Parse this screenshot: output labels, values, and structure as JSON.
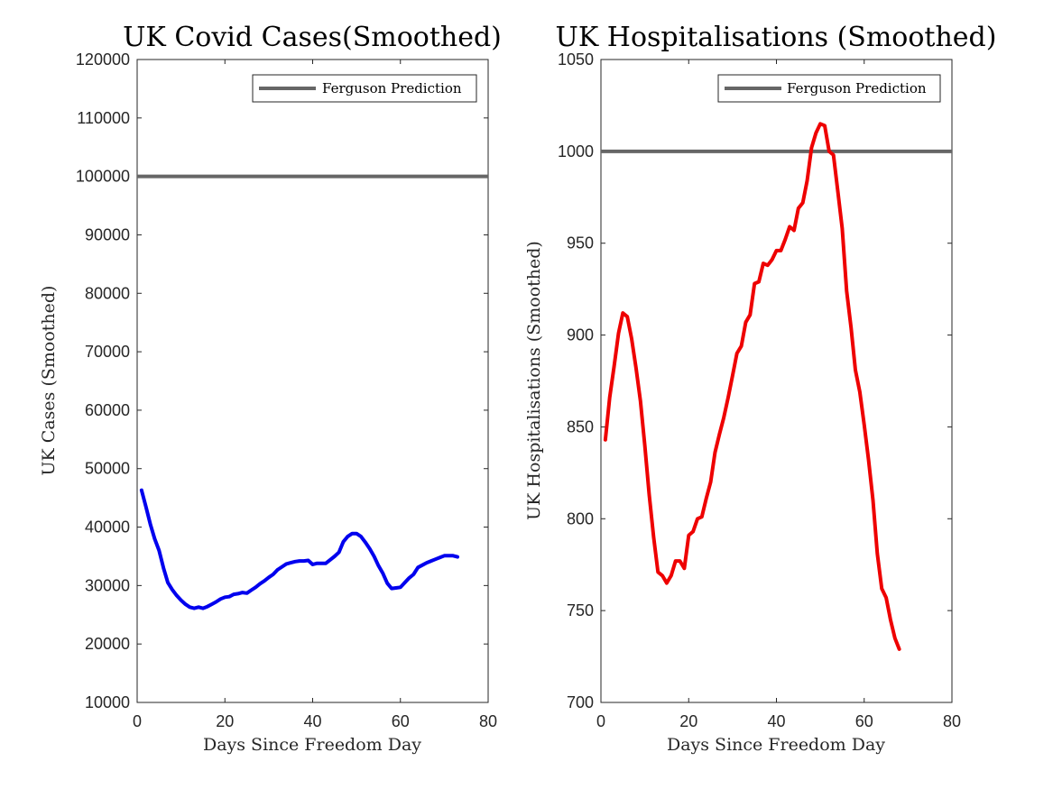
{
  "chart_data": [
    {
      "type": "line",
      "title": "UK Covid Cases(Smoothed)",
      "xlabel": "Days Since Freedom Day",
      "ylabel": "UK Cases (Smoothed)",
      "xlim": [
        0,
        80
      ],
      "ylim": [
        10000,
        120000
      ],
      "xticks": [
        0,
        20,
        40,
        60,
        80
      ],
      "yticks": [
        10000,
        20000,
        30000,
        40000,
        50000,
        60000,
        70000,
        80000,
        90000,
        100000,
        110000,
        120000
      ],
      "grid": false,
      "legend_position": "top-right",
      "reference_line": {
        "label": "Ferguson Prediction",
        "y": 100000,
        "color": "#666666"
      },
      "series": [
        {
          "color": "#0000ee",
          "x": [
            1,
            2,
            3,
            4,
            5,
            6,
            7,
            8,
            9,
            10,
            11,
            12,
            13,
            14,
            15,
            16,
            17,
            18,
            19,
            20,
            21,
            22,
            23,
            24,
            25,
            26,
            27,
            28,
            29,
            30,
            31,
            32,
            33,
            34,
            35,
            36,
            37,
            38,
            39,
            40,
            41,
            42,
            43,
            44,
            45,
            46,
            47,
            48,
            49,
            50,
            51,
            52,
            53,
            54,
            55,
            56,
            57,
            58,
            59,
            60,
            61,
            62,
            63,
            64,
            65,
            66,
            67,
            68,
            69,
            70,
            71,
            72,
            73
          ],
          "y": [
            46300,
            43500,
            40500,
            38000,
            36000,
            33000,
            30500,
            29300,
            28300,
            27500,
            26800,
            26300,
            26100,
            26300,
            26100,
            26400,
            26800,
            27200,
            27700,
            28000,
            28100,
            28500,
            28600,
            28800,
            28700,
            29200,
            29700,
            30300,
            30800,
            31400,
            31900,
            32700,
            33200,
            33700,
            33900,
            34100,
            34200,
            34200,
            34300,
            33600,
            33800,
            33800,
            33800,
            34400,
            35000,
            35700,
            37500,
            38400,
            38900,
            38900,
            38400,
            37400,
            36300,
            35000,
            33400,
            32100,
            30400,
            29500,
            29600,
            29700,
            30500,
            31300,
            31900,
            33100,
            33500,
            33900,
            34200,
            34500,
            34800,
            35100,
            35100,
            35100,
            34900
          ]
        }
      ]
    },
    {
      "type": "line",
      "title": "UK Hospitalisations (Smoothed)",
      "xlabel": "Days Since Freedom Day",
      "ylabel": "UK Hospitalisations (Smoothed)",
      "xlim": [
        0,
        80
      ],
      "ylim": [
        700,
        1050
      ],
      "xticks": [
        0,
        20,
        40,
        60,
        80
      ],
      "yticks": [
        700,
        750,
        800,
        850,
        900,
        950,
        1000,
        1050
      ],
      "grid": false,
      "legend_position": "top-right",
      "reference_line": {
        "label": "Ferguson Prediction",
        "y": 1000,
        "color": "#666666"
      },
      "series": [
        {
          "color": "#ee0000",
          "x": [
            1,
            2,
            3,
            4,
            5,
            6,
            7,
            8,
            9,
            10,
            11,
            12,
            13,
            14,
            15,
            16,
            17,
            18,
            19,
            20,
            21,
            22,
            23,
            24,
            25,
            26,
            27,
            28,
            29,
            30,
            31,
            32,
            33,
            34,
            35,
            36,
            37,
            38,
            39,
            40,
            41,
            42,
            43,
            44,
            45,
            46,
            47,
            48,
            49,
            50,
            51,
            52,
            53,
            54,
            55,
            56,
            57,
            58,
            59,
            60,
            61,
            62,
            63,
            64,
            65,
            66,
            67,
            68
          ],
          "y": [
            843,
            866,
            883,
            901,
            912,
            910,
            898,
            882,
            864,
            840,
            813,
            790,
            771,
            769,
            765,
            769,
            777,
            777,
            773,
            791,
            793,
            800,
            801,
            811,
            820,
            836,
            846,
            855,
            866,
            878,
            890,
            894,
            907,
            911,
            928,
            929,
            939,
            938,
            941,
            946,
            946,
            952,
            959,
            957,
            969,
            972,
            984,
            1002,
            1010,
            1015,
            1014,
            1000,
            998,
            978,
            958,
            924,
            904,
            881,
            869,
            851,
            832,
            810,
            781,
            762,
            757,
            745,
            735,
            729
          ]
        }
      ]
    }
  ]
}
